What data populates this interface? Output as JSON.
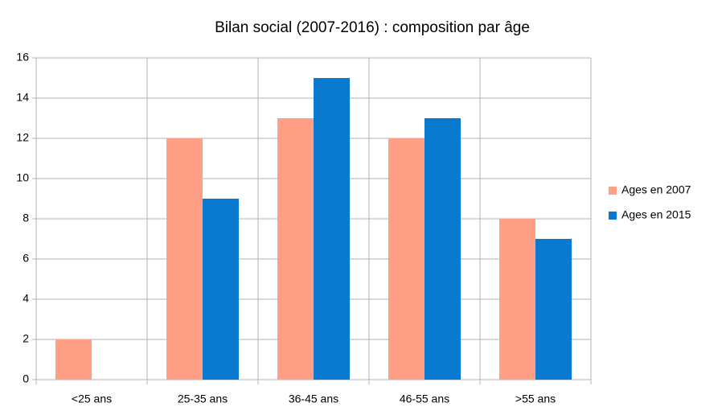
{
  "chart_data": {
    "type": "bar",
    "title": "Bilan social (2007-2016) : composition par âge",
    "categories": [
      "<25 ans",
      "25-35 ans",
      "36-45 ans",
      "46-55 ans",
      ">55 ans"
    ],
    "series": [
      {
        "name": "Ages en 2007",
        "color": "#ff9f86",
        "values": [
          2,
          12,
          13,
          12,
          8
        ]
      },
      {
        "name": "Ages en 2015",
        "color": "#0a7ad0",
        "values": [
          0,
          9,
          15,
          13,
          7
        ]
      }
    ],
    "ylim": [
      0,
      16
    ],
    "yticks": [
      0,
      2,
      4,
      6,
      8,
      10,
      12,
      14,
      16
    ],
    "grid": true,
    "legend": "right"
  }
}
